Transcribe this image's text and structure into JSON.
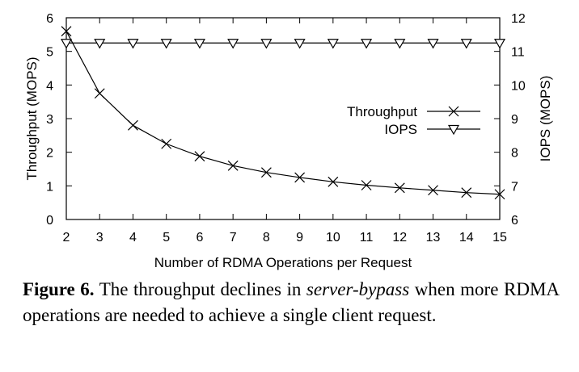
{
  "chart_data": {
    "type": "line",
    "xlabel": "Number of RDMA Operations per Request",
    "ylabel": "Throughput (MOPS)",
    "y2label": "IOPS (MOPS)",
    "x": [
      2,
      3,
      4,
      5,
      6,
      7,
      8,
      9,
      10,
      11,
      12,
      13,
      14,
      15
    ],
    "xlim": [
      2,
      15
    ],
    "ylim": [
      0,
      6
    ],
    "y2lim": [
      6,
      12
    ],
    "xticks": [
      "2",
      "3",
      "4",
      "5",
      "6",
      "7",
      "8",
      "9",
      "10",
      "11",
      "12",
      "13",
      "14",
      "15"
    ],
    "yticks": [
      "0",
      "1",
      "2",
      "3",
      "4",
      "5",
      "6"
    ],
    "y2ticks": [
      "6",
      "7",
      "8",
      "9",
      "10",
      "11",
      "12"
    ],
    "grid": false,
    "legend_position": "right",
    "series": [
      {
        "name": "Throughput",
        "axis": "left",
        "marker": "x",
        "values": [
          5.6,
          3.75,
          2.8,
          2.25,
          1.88,
          1.6,
          1.4,
          1.25,
          1.12,
          1.02,
          0.94,
          0.87,
          0.8,
          0.75
        ]
      },
      {
        "name": "IOPS",
        "axis": "right",
        "marker": "triangle-down",
        "values": [
          11.25,
          11.25,
          11.25,
          11.25,
          11.25,
          11.25,
          11.25,
          11.25,
          11.25,
          11.25,
          11.25,
          11.25,
          11.25,
          11.25
        ]
      }
    ]
  },
  "caption": {
    "label": "Figure 6.",
    "text_before": " The throughput declines in ",
    "emphasis": "server-bypass",
    "text_after": " when more RDMA operations are needed to achieve a single client request."
  }
}
